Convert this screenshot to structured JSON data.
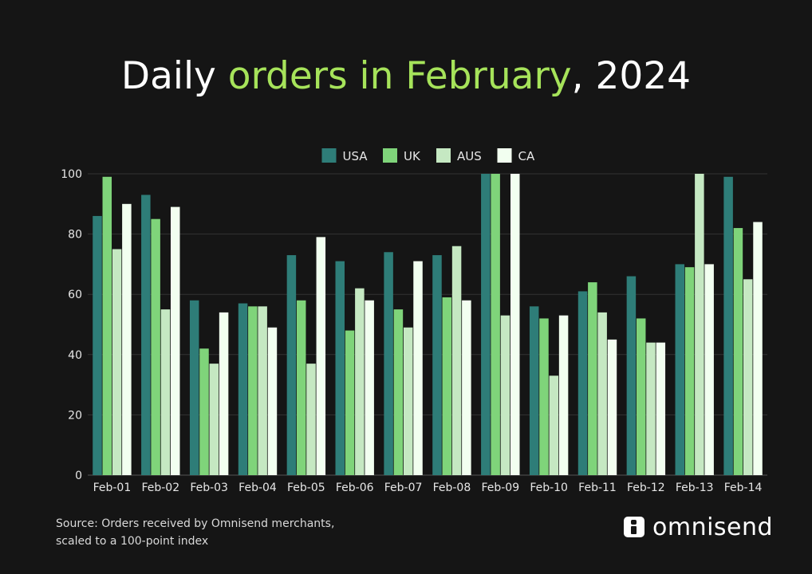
{
  "title": {
    "part1": "Daily ",
    "accent": "orders in February",
    "part2": ", 2024"
  },
  "colors": {
    "background": "#151515",
    "accent": "#a6e35a",
    "usa": "#2e7d78",
    "uk": "#7fd47a",
    "aus": "#c5e8c2",
    "ca": "#f2fff0"
  },
  "chart_data": {
    "type": "bar",
    "categories": [
      "Feb-01",
      "Feb-02",
      "Feb-03",
      "Feb-04",
      "Feb-05",
      "Feb-06",
      "Feb-07",
      "Feb-08",
      "Feb-09",
      "Feb-10",
      "Feb-11",
      "Feb-12",
      "Feb-13",
      "Feb-14"
    ],
    "series": [
      {
        "name": "USA",
        "color": "#2e7d78",
        "values": [
          86,
          93,
          58,
          57,
          73,
          71,
          74,
          73,
          100,
          56,
          61,
          66,
          70,
          99
        ]
      },
      {
        "name": "UK",
        "color": "#7fd47a",
        "values": [
          99,
          85,
          42,
          56,
          58,
          48,
          55,
          59,
          100,
          52,
          64,
          52,
          69,
          82
        ]
      },
      {
        "name": "AUS",
        "color": "#c5e8c2",
        "values": [
          75,
          55,
          37,
          56,
          37,
          62,
          49,
          76,
          53,
          33,
          54,
          44,
          100,
          65
        ]
      },
      {
        "name": "CA",
        "color": "#f2fff0",
        "values": [
          90,
          89,
          54,
          49,
          79,
          58,
          71,
          58,
          100,
          53,
          45,
          44,
          70,
          84
        ]
      }
    ],
    "ylim": [
      0,
      100
    ],
    "yticks": [
      0,
      20,
      40,
      60,
      80,
      100
    ],
    "grid": true,
    "legend": "top-center"
  },
  "source": {
    "line1": "Source: Orders received by Omnisend merchants,",
    "line2": "scaled to a 100-point index"
  },
  "logo": {
    "text": "omnisend"
  }
}
